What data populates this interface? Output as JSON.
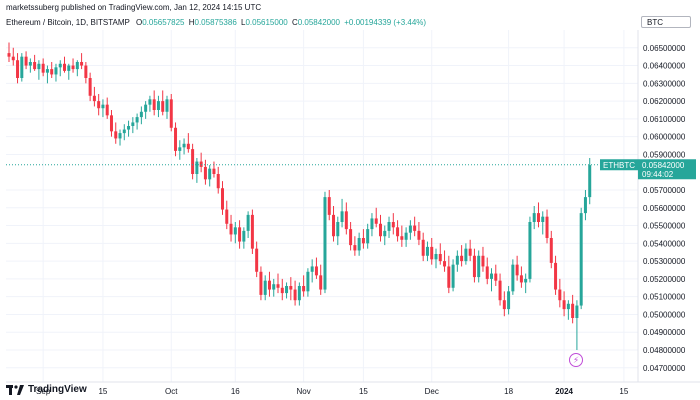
{
  "publisher": "marketssuberg published on TradingView.com, Jan 12, 2024 14:15 UTC",
  "currency": "BTC",
  "ohlc": {
    "symbol": "Ethereum / Bitcoin, 1D, BITSTAMP",
    "o_label": "O",
    "o": "0.05657825",
    "h_label": "H",
    "h": "0.05875386",
    "l_label": "L",
    "l": "0.05615000",
    "c_label": "C",
    "c": "0.05842000",
    "change": "+0.00194339 (+3.44%)"
  },
  "last_price": {
    "symbol": "ETHBTC",
    "value": "0.05842000",
    "countdown": "09:44:02"
  },
  "brand": "TradingView",
  "colors": {
    "up": "#26a69a",
    "down": "#f23645",
    "axis_text": "#131722",
    "grid": "#f0f3fa"
  },
  "chart_data": {
    "type": "candlestick",
    "y_ticks": [
      0.065,
      0.064,
      0.063,
      0.062,
      0.061,
      0.06,
      0.059,
      0.057,
      0.056,
      0.055,
      0.054,
      0.053,
      0.052,
      0.051,
      0.05,
      0.049,
      0.048,
      0.047
    ],
    "y_tick_labels": [
      "0.06500000",
      "0.06400000",
      "0.06300000",
      "0.06200000",
      "0.06100000",
      "0.06000000",
      "0.05900000",
      "0.05700000",
      "0.05600000",
      "0.05500000",
      "0.05400000",
      "0.05300000",
      "0.05200000",
      "0.05100000",
      "0.05000000",
      "0.04900000",
      "0.04800000",
      "0.04700000"
    ],
    "ylim": [
      0.0462,
      0.066
    ],
    "x_labels": [
      {
        "label": "Sep",
        "index": 8,
        "bold": false
      },
      {
        "label": "15",
        "index": 22,
        "bold": false
      },
      {
        "label": "Oct",
        "index": 38,
        "bold": false
      },
      {
        "label": "16",
        "index": 53,
        "bold": false
      },
      {
        "label": "Nov",
        "index": 69,
        "bold": false
      },
      {
        "label": "15",
        "index": 83,
        "bold": false
      },
      {
        "label": "Dec",
        "index": 99,
        "bold": false
      },
      {
        "label": "18",
        "index": 117,
        "bold": false
      },
      {
        "label": "2024",
        "index": 130,
        "bold": true
      },
      {
        "label": "15",
        "index": 144,
        "bold": false
      }
    ],
    "candles": [
      [
        0.0647,
        0.0653,
        0.0642,
        0.0645
      ],
      [
        0.0645,
        0.065,
        0.064,
        0.0643
      ],
      [
        0.0643,
        0.0647,
        0.063,
        0.0633
      ],
      [
        0.0633,
        0.0647,
        0.0631,
        0.0645
      ],
      [
        0.0645,
        0.0648,
        0.0638,
        0.064
      ],
      [
        0.064,
        0.0644,
        0.0636,
        0.0642
      ],
      [
        0.0642,
        0.0646,
        0.0637,
        0.0638
      ],
      [
        0.0638,
        0.0643,
        0.0632,
        0.0641
      ],
      [
        0.0641,
        0.0644,
        0.0634,
        0.0636
      ],
      [
        0.0636,
        0.064,
        0.063,
        0.0638
      ],
      [
        0.0638,
        0.0642,
        0.0633,
        0.0635
      ],
      [
        0.0635,
        0.0641,
        0.0631,
        0.0639
      ],
      [
        0.0639,
        0.0643,
        0.0634,
        0.0641
      ],
      [
        0.0641,
        0.0645,
        0.0636,
        0.0637
      ],
      [
        0.0637,
        0.0641,
        0.0632,
        0.064
      ],
      [
        0.064,
        0.0644,
        0.0636,
        0.0638
      ],
      [
        0.0638,
        0.0643,
        0.0634,
        0.0642
      ],
      [
        0.0642,
        0.0647,
        0.0638,
        0.064
      ],
      [
        0.064,
        0.0642,
        0.063,
        0.0633
      ],
      [
        0.0633,
        0.0636,
        0.062,
        0.0623
      ],
      [
        0.0623,
        0.0628,
        0.0617,
        0.062
      ],
      [
        0.062,
        0.0624,
        0.0612,
        0.0616
      ],
      [
        0.0616,
        0.0621,
        0.0611,
        0.0618
      ],
      [
        0.0618,
        0.0622,
        0.061,
        0.0612
      ],
      [
        0.0612,
        0.0615,
        0.06,
        0.0603
      ],
      [
        0.0603,
        0.0608,
        0.0596,
        0.0599
      ],
      [
        0.0599,
        0.0604,
        0.0595,
        0.0602
      ],
      [
        0.0602,
        0.0607,
        0.0598,
        0.0604
      ],
      [
        0.0604,
        0.0609,
        0.06,
        0.0606
      ],
      [
        0.0606,
        0.0611,
        0.0602,
        0.0608
      ],
      [
        0.0608,
        0.0613,
        0.0604,
        0.0611
      ],
      [
        0.0611,
        0.0617,
        0.0607,
        0.0614
      ],
      [
        0.0614,
        0.062,
        0.061,
        0.0618
      ],
      [
        0.0618,
        0.0623,
        0.0614,
        0.0621
      ],
      [
        0.0621,
        0.0626,
        0.0612,
        0.0615
      ],
      [
        0.0615,
        0.0623,
        0.0611,
        0.062
      ],
      [
        0.062,
        0.0626,
        0.0612,
        0.0614
      ],
      [
        0.0614,
        0.0623,
        0.061,
        0.0621
      ],
      [
        0.0621,
        0.0624,
        0.0603,
        0.0605
      ],
      [
        0.0605,
        0.0608,
        0.0589,
        0.0592
      ],
      [
        0.0592,
        0.0598,
        0.0587,
        0.0594
      ],
      [
        0.0594,
        0.0599,
        0.059,
        0.0596
      ],
      [
        0.0596,
        0.0602,
        0.0591,
        0.0593
      ],
      [
        0.0593,
        0.0596,
        0.0576,
        0.0579
      ],
      [
        0.0579,
        0.0588,
        0.0574,
        0.0586
      ],
      [
        0.0586,
        0.0591,
        0.058,
        0.0583
      ],
      [
        0.0583,
        0.0587,
        0.0573,
        0.0576
      ],
      [
        0.0576,
        0.0584,
        0.0572,
        0.0582
      ],
      [
        0.0582,
        0.0586,
        0.0577,
        0.0579
      ],
      [
        0.0579,
        0.0583,
        0.0568,
        0.0571
      ],
      [
        0.0571,
        0.0575,
        0.0556,
        0.0559
      ],
      [
        0.0559,
        0.0564,
        0.0548,
        0.0551
      ],
      [
        0.0551,
        0.0556,
        0.0541,
        0.0545
      ],
      [
        0.0545,
        0.0552,
        0.054,
        0.0549
      ],
      [
        0.0549,
        0.0553,
        0.0537,
        0.0541
      ],
      [
        0.0541,
        0.0549,
        0.0537,
        0.0547
      ],
      [
        0.0547,
        0.0558,
        0.0543,
        0.0556
      ],
      [
        0.0556,
        0.0559,
        0.0534,
        0.0537
      ],
      [
        0.0537,
        0.0541,
        0.0521,
        0.0524
      ],
      [
        0.0524,
        0.0527,
        0.0508,
        0.0511
      ],
      [
        0.0511,
        0.0522,
        0.0508,
        0.0519
      ],
      [
        0.0519,
        0.0524,
        0.051,
        0.0514
      ],
      [
        0.0514,
        0.052,
        0.051,
        0.0517
      ],
      [
        0.0517,
        0.0523,
        0.0512,
        0.0515
      ],
      [
        0.0515,
        0.052,
        0.0508,
        0.0512
      ],
      [
        0.0512,
        0.0518,
        0.0509,
        0.0516
      ],
      [
        0.0516,
        0.0521,
        0.0508,
        0.0514
      ],
      [
        0.0514,
        0.0519,
        0.0505,
        0.0508
      ],
      [
        0.0508,
        0.0518,
        0.0505,
        0.0516
      ],
      [
        0.0516,
        0.0522,
        0.051,
        0.0513
      ],
      [
        0.0513,
        0.0526,
        0.051,
        0.0524
      ],
      [
        0.0524,
        0.0531,
        0.0518,
        0.0527
      ],
      [
        0.0527,
        0.0532,
        0.052,
        0.0522
      ],
      [
        0.0522,
        0.0528,
        0.0511,
        0.0514
      ],
      [
        0.0514,
        0.0569,
        0.0512,
        0.0566
      ],
      [
        0.0566,
        0.057,
        0.0553,
        0.0556
      ],
      [
        0.0556,
        0.0561,
        0.0541,
        0.0544
      ],
      [
        0.0544,
        0.0555,
        0.0539,
        0.0552
      ],
      [
        0.0552,
        0.0565,
        0.0549,
        0.0558
      ],
      [
        0.0558,
        0.0563,
        0.0545,
        0.0548
      ],
      [
        0.0548,
        0.0552,
        0.0536,
        0.0539
      ],
      [
        0.0539,
        0.0544,
        0.0533,
        0.0536
      ],
      [
        0.0536,
        0.0546,
        0.0533,
        0.0543
      ],
      [
        0.0543,
        0.0548,
        0.0537,
        0.054
      ],
      [
        0.054,
        0.0551,
        0.0537,
        0.0548
      ],
      [
        0.0548,
        0.0557,
        0.0544,
        0.0554
      ],
      [
        0.0554,
        0.056,
        0.0549,
        0.0551
      ],
      [
        0.0551,
        0.0556,
        0.0541,
        0.0544
      ],
      [
        0.0544,
        0.055,
        0.0539,
        0.0547
      ],
      [
        0.0547,
        0.0555,
        0.0543,
        0.0552
      ],
      [
        0.0552,
        0.0557,
        0.0545,
        0.0549
      ],
      [
        0.0549,
        0.0553,
        0.0541,
        0.0544
      ],
      [
        0.0544,
        0.055,
        0.0538,
        0.0542
      ],
      [
        0.0542,
        0.0549,
        0.0538,
        0.0546
      ],
      [
        0.0546,
        0.0553,
        0.0542,
        0.055
      ],
      [
        0.055,
        0.0555,
        0.0544,
        0.0547
      ],
      [
        0.0547,
        0.0552,
        0.0539,
        0.0542
      ],
      [
        0.0542,
        0.0546,
        0.053,
        0.0533
      ],
      [
        0.0533,
        0.0541,
        0.053,
        0.0538
      ],
      [
        0.0538,
        0.0543,
        0.0528,
        0.0531
      ],
      [
        0.0531,
        0.0537,
        0.0526,
        0.0534
      ],
      [
        0.0534,
        0.054,
        0.0528,
        0.053
      ],
      [
        0.053,
        0.0536,
        0.0524,
        0.0527
      ],
      [
        0.0527,
        0.0533,
        0.0512,
        0.0515
      ],
      [
        0.0515,
        0.0531,
        0.0513,
        0.0528
      ],
      [
        0.0528,
        0.0536,
        0.0524,
        0.0533
      ],
      [
        0.0533,
        0.0539,
        0.0527,
        0.053
      ],
      [
        0.053,
        0.054,
        0.0528,
        0.0537
      ],
      [
        0.0537,
        0.0542,
        0.053,
        0.0533
      ],
      [
        0.0533,
        0.0537,
        0.0518,
        0.0521
      ],
      [
        0.0521,
        0.0536,
        0.0518,
        0.0533
      ],
      [
        0.0533,
        0.0538,
        0.0524,
        0.0527
      ],
      [
        0.0527,
        0.0532,
        0.0517,
        0.052
      ],
      [
        0.052,
        0.0526,
        0.0513,
        0.0523
      ],
      [
        0.0523,
        0.0528,
        0.0516,
        0.0519
      ],
      [
        0.0519,
        0.0523,
        0.0505,
        0.0508
      ],
      [
        0.0508,
        0.0513,
        0.0499,
        0.0503
      ],
      [
        0.0503,
        0.0516,
        0.05,
        0.0513
      ],
      [
        0.0513,
        0.0531,
        0.0511,
        0.0528
      ],
      [
        0.0528,
        0.0533,
        0.0519,
        0.0522
      ],
      [
        0.0522,
        0.0527,
        0.0515,
        0.0518
      ],
      [
        0.0518,
        0.0523,
        0.0512,
        0.052
      ],
      [
        0.052,
        0.0555,
        0.0518,
        0.0552
      ],
      [
        0.0552,
        0.0561,
        0.0548,
        0.0557
      ],
      [
        0.0557,
        0.0563,
        0.0549,
        0.0552
      ],
      [
        0.0552,
        0.0558,
        0.0545,
        0.0555
      ],
      [
        0.0555,
        0.0559,
        0.054,
        0.0543
      ],
      [
        0.0543,
        0.0547,
        0.0526,
        0.0529
      ],
      [
        0.0529,
        0.0533,
        0.0511,
        0.0514
      ],
      [
        0.0514,
        0.052,
        0.0504,
        0.0508
      ],
      [
        0.0508,
        0.0513,
        0.0499,
        0.0503
      ],
      [
        0.0503,
        0.0508,
        0.0497,
        0.0506
      ],
      [
        0.0506,
        0.0511,
        0.0495,
        0.0498
      ],
      [
        0.0498,
        0.0508,
        0.048,
        0.0505
      ],
      [
        0.0505,
        0.056,
        0.0503,
        0.0557
      ],
      [
        0.0557,
        0.057,
        0.0553,
        0.0566
      ],
      [
        0.0566,
        0.0588,
        0.0562,
        0.0584
      ]
    ],
    "last_price_value": 0.05842
  }
}
